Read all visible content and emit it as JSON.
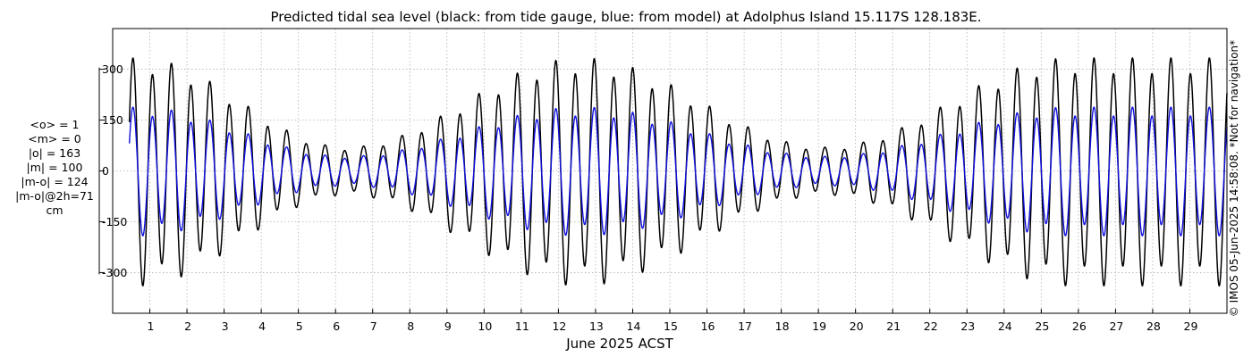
{
  "chart_data": {
    "type": "line",
    "title": "Predicted tidal sea level (black: from tide gauge, blue: from model) at Adolphus Island 15.117S 128.183E.",
    "xlabel": "June 2025 ACST",
    "ylabel": "",
    "x_ticks": [
      "1",
      "2",
      "3",
      "4",
      "5",
      "6",
      "7",
      "8",
      "9",
      "10",
      "11",
      "12",
      "13",
      "14",
      "15",
      "16",
      "17",
      "18",
      "19",
      "20",
      "21",
      "22",
      "23",
      "24",
      "25",
      "26",
      "27",
      "28",
      "29"
    ],
    "x_range_days": [
      0,
      30
    ],
    "y_ticks": [
      "300",
      "150",
      "0",
      "-150",
      "-300"
    ],
    "y_tick_values": [
      300,
      150,
      0,
      -150,
      -300
    ],
    "ylim": [
      -420,
      420
    ],
    "grid": true,
    "series": [
      {
        "color": "#000000",
        "tide_period_hours": 12.42,
        "min_amplitude": 65,
        "max_amplitude": 310,
        "spring_days": [
          0.7,
          12.6,
          25.8
        ],
        "neap_days": [
          6.3,
          19.2
        ]
      },
      {
        "color": "#1010e0",
        "tide_period_hours": 12.42,
        "min_amplitude": 40,
        "max_amplitude": 175,
        "spring_days": [
          0.7,
          12.6,
          25.8
        ],
        "neap_days": [
          6.3,
          19.2
        ]
      }
    ],
    "stats": [
      "<o> = 1",
      "<m> = 0",
      "|o| = 163",
      "|m| = 100",
      "|m-o| = 124",
      "|m-o|@2h=71",
      "cm"
    ],
    "credit": "© IMOS 05-Jun-2025 14:58:08.  *Not for navigation*"
  }
}
